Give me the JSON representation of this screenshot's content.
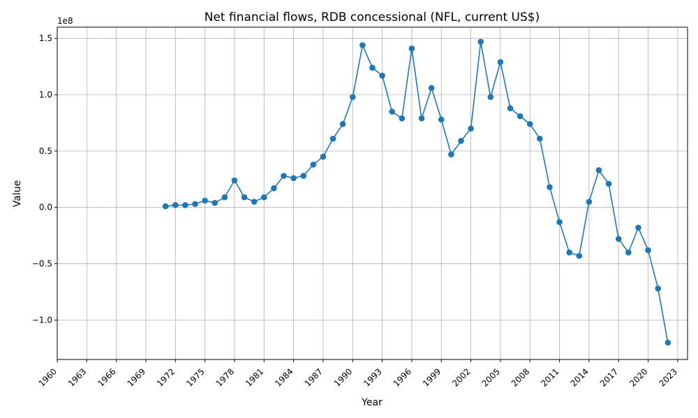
{
  "chart_data": {
    "type": "line",
    "title": "Net financial flows, RDB concessional (NFL, current US$)",
    "xlabel": "Year",
    "ylabel": "Value",
    "y_offset_label": "1e8",
    "xlim": [
      1960,
      2024
    ],
    "ylim": [
      -135000000.0,
      160000000.0
    ],
    "x_ticks": [
      1960,
      1963,
      1966,
      1969,
      1972,
      1975,
      1978,
      1981,
      1984,
      1987,
      1990,
      1993,
      1996,
      1999,
      2002,
      2005,
      2008,
      2011,
      2014,
      2017,
      2020,
      2023
    ],
    "y_ticks": [
      -100000000.0,
      -50000000.0,
      0,
      50000000.0,
      100000000.0,
      150000000.0
    ],
    "y_tick_labels": [
      "−1.0",
      "−0.5",
      "0.0",
      "0.5",
      "1.0",
      "1.5"
    ],
    "grid": true,
    "color": "#1f77b4",
    "x": [
      1971,
      1972,
      1973,
      1974,
      1975,
      1976,
      1977,
      1978,
      1979,
      1980,
      1981,
      1982,
      1983,
      1984,
      1985,
      1986,
      1987,
      1988,
      1989,
      1990,
      1991,
      1992,
      1993,
      1994,
      1995,
      1996,
      1997,
      1998,
      1999,
      2000,
      2001,
      2002,
      2003,
      2004,
      2005,
      2006,
      2007,
      2008,
      2009,
      2010,
      2011,
      2012,
      2013,
      2014,
      2015,
      2016,
      2017,
      2018,
      2019,
      2020,
      2021,
      2022
    ],
    "values": [
      1000000,
      2000000,
      2000000,
      3000000,
      6000000,
      4000000,
      9000000,
      24000000,
      9000000,
      5000000,
      9000000,
      17000000,
      28000000,
      26000000,
      28000000,
      38000000,
      45000000,
      61000000,
      74000000,
      98000000,
      144000000,
      124000000,
      117000000,
      85000000,
      79000000,
      141000000,
      79000000,
      106000000,
      78000000,
      47000000,
      59000000,
      70000000,
      147000000,
      98000000,
      129000000,
      88000000,
      81000000,
      74000000,
      61000000,
      18000000,
      -13000000,
      -40000000,
      -43000000,
      5000000,
      33000000,
      21000000,
      -28000000,
      -40000000,
      -18000000,
      -38000000,
      -72000000,
      -120000000
    ]
  }
}
